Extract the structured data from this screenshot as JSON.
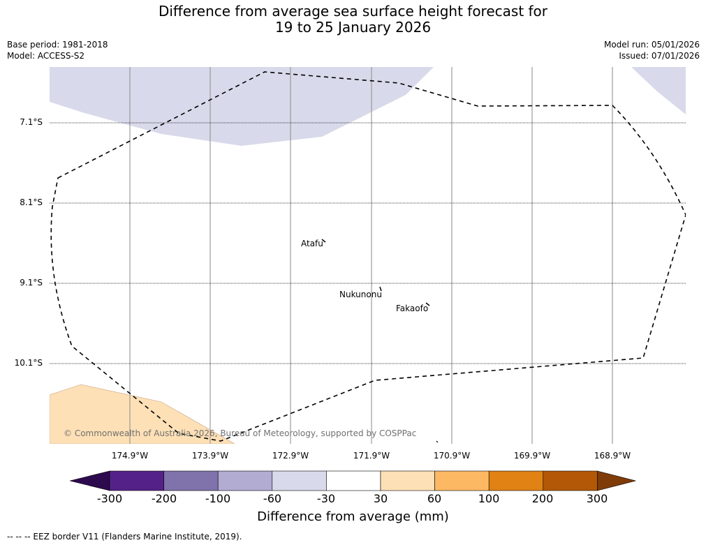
{
  "title_line1": "Difference from average sea surface height forecast for",
  "title_line2": "19 to 25 January 2026",
  "base_period": "Base period: 1981-2018",
  "model": "Model: ACCESS-S2",
  "model_run": "Model run: 05/01/2026",
  "issued": "Issued: 07/01/2026",
  "latitudes": [
    "7.1°S",
    "8.1°S",
    "9.1°S",
    "10.1°S"
  ],
  "longitudes": [
    "174.9°W",
    "173.9°W",
    "172.9°W",
    "171.9°W",
    "170.9°W",
    "169.9°W",
    "168.9°W"
  ],
  "places": [
    "Atafu",
    "Nukunonu",
    "Fakaofo"
  ],
  "copyright": "© Commonwealth of Australia 2026, Bureau of Meteorology, supported by COSPPac",
  "colorbar": {
    "ticks": [
      "-300",
      "-200",
      "-100",
      "-60",
      "-30",
      "30",
      "60",
      "100",
      "200",
      "300"
    ],
    "colors": [
      "#2d0a4e",
      "#542188",
      "#8073ac",
      "#b2abd2",
      "#d8daeb",
      "#ffffff",
      "#fee0b6",
      "#fdb863",
      "#e08214",
      "#b35806",
      "#7f3b08"
    ],
    "label": "Difference from average (mm)"
  },
  "footer": "--  --  -- EEZ border V11 (Flanders Marine Institute, 2019)."
}
